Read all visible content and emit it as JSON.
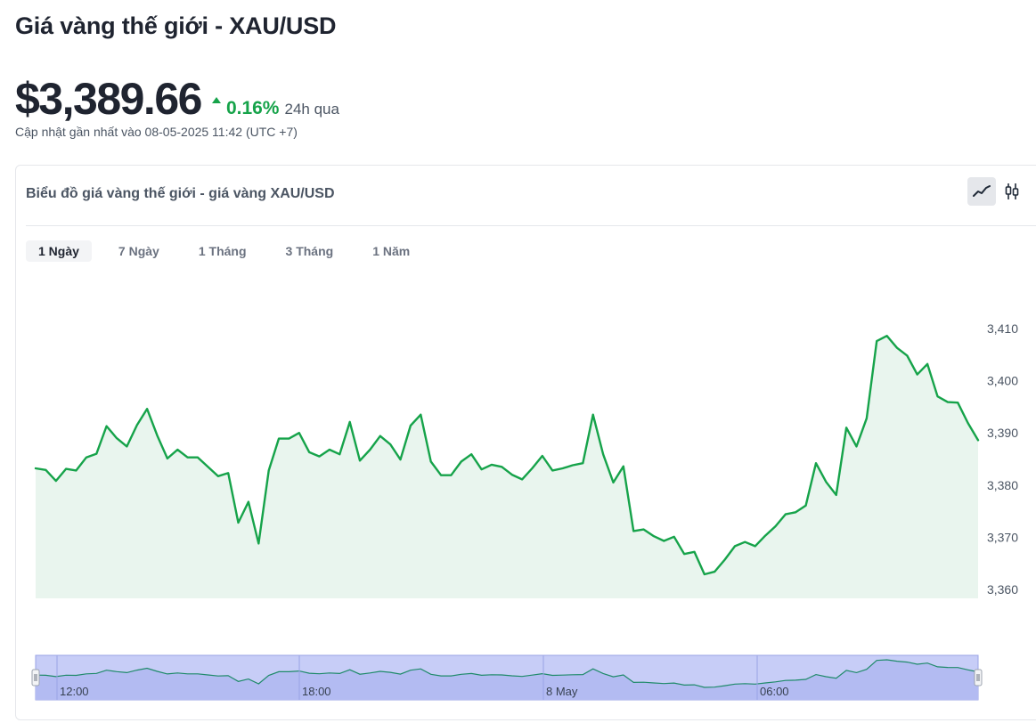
{
  "header": {
    "title": "Giá vàng thế giới - XAU/USD",
    "price": "$3,389.66",
    "change_pct": "0.16%",
    "change_period": "24h qua",
    "updated": "Cập nhật gần nhất vào 08-05-2025 11:42 (UTC +7)"
  },
  "card": {
    "title": "Biểu đồ giá vàng thế giới - giá vàng XAU/USD",
    "chart_type_buttons": [
      {
        "name": "line-chart-icon",
        "active": true
      },
      {
        "name": "candlestick-icon",
        "active": false
      }
    ],
    "ranges": [
      {
        "label": "1 Ngày",
        "active": true
      },
      {
        "label": "7 Ngày",
        "active": false
      },
      {
        "label": "1 Tháng",
        "active": false
      },
      {
        "label": "3 Tháng",
        "active": false
      },
      {
        "label": "1 Năm",
        "active": false
      }
    ]
  },
  "colors": {
    "line": "#16a34a",
    "fill": "#e9f5ee",
    "navigator_bg": "#c7cdf7",
    "navigator_line": "#1f8a6a",
    "up": "#16a34a"
  },
  "chart_data": {
    "type": "area",
    "series": [
      {
        "values": [
          3383.2,
          3382.9,
          3380.8,
          3383.1,
          3382.8,
          3385.3,
          3386.0,
          3391.3,
          3389.0,
          3387.4,
          3391.5,
          3394.6,
          3389.5,
          3385.1,
          3386.8,
          3385.3,
          3385.3,
          3383.5,
          3381.7,
          3382.3,
          3372.8,
          3376.8,
          3368.8,
          3382.8,
          3388.9,
          3388.9,
          3390.0,
          3386.3,
          3385.5,
          3386.8,
          3385.9,
          3392.1,
          3384.7,
          3386.8,
          3389.4,
          3387.8,
          3384.9,
          3391.4,
          3393.5,
          3384.5,
          3381.9,
          3381.9,
          3384.5,
          3385.9,
          3383.0,
          3383.9,
          3383.5,
          3382.0,
          3381.1,
          3383.2,
          3385.6,
          3382.8,
          3383.2,
          3383.8,
          3384.2,
          3393.5,
          3385.9,
          3380.5,
          3383.6,
          3371.2,
          3371.5,
          3370.2,
          3369.3,
          3370.1,
          3366.8,
          3367.2,
          3362.9,
          3363.4,
          3365.7,
          3368.3,
          3369.1,
          3368.3,
          3370.3,
          3372.1,
          3374.4,
          3374.8,
          3376.1,
          3384.2,
          3380.6,
          3378.1,
          3391.0,
          3387.4,
          3392.8,
          3407.6,
          3408.6,
          3406.3,
          3404.8,
          3401.2,
          3403.2,
          3397.0,
          3395.9,
          3395.8,
          3391.9,
          3388.6
        ]
      }
    ],
    "y_ticks": [
      "3,410",
      "3,400",
      "3,390",
      "3,380",
      "3,370",
      "3,360"
    ],
    "y_tick_values": [
      3410,
      3400,
      3390,
      3380,
      3370,
      3360
    ],
    "ylim": [
      3358.7,
      3416.0
    ],
    "navigator_labels": [
      "12:00",
      "18:00",
      "8 May",
      "06:00"
    ],
    "grid": false,
    "legend": "none"
  }
}
